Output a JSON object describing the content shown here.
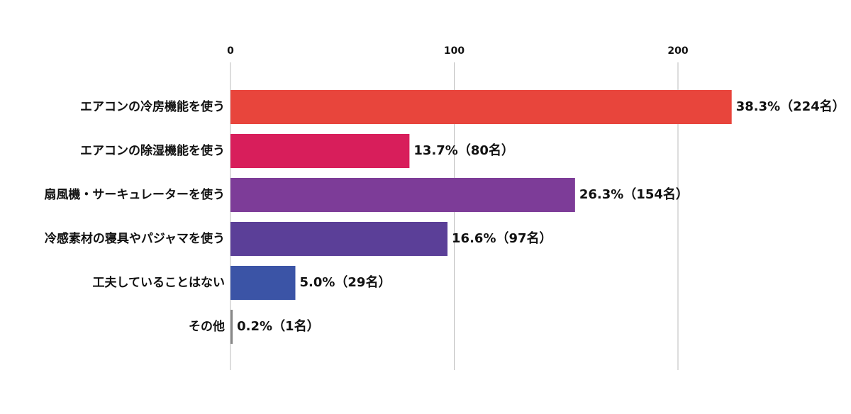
{
  "chart_data": {
    "type": "bar",
    "orientation": "horizontal",
    "categories": [
      "エアコンの冷房機能を使う",
      "エアコンの除湿機能を使う",
      "扇風機・サーキュレーターを使う",
      "冷感素材の寝具やパジャマを使う",
      "工夫していることはない",
      "その他"
    ],
    "values": [
      224,
      80,
      154,
      97,
      29,
      1
    ],
    "value_labels": [
      "38.3%（224名）",
      "13.7%（80名）",
      "26.3%（154名）",
      "16.6%（97名）",
      "5.0%（29名）",
      "0.2%（1名）"
    ],
    "colors": [
      "#e8453c",
      "#d81e5b",
      "#7d3c98",
      "#5b3f98",
      "#3b54a6",
      "#888888"
    ],
    "xlim": [
      0,
      250
    ],
    "xticks": [
      0,
      100,
      200
    ],
    "grid": true
  }
}
